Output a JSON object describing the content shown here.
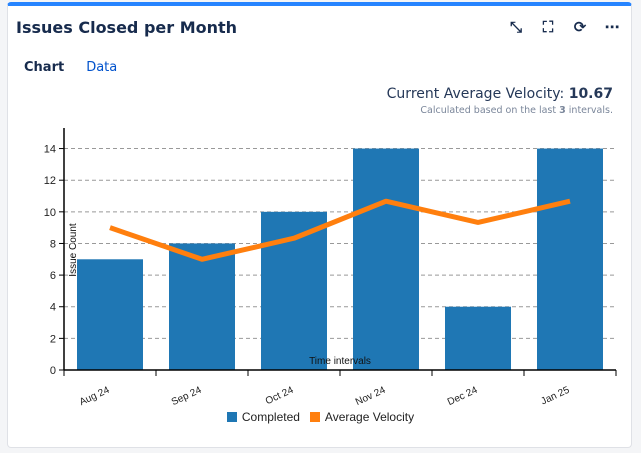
{
  "header": {
    "title": "Issues Closed per Month",
    "icons": [
      "collapse-icon",
      "fullscreen-icon",
      "refresh-icon",
      "more-icon"
    ]
  },
  "tabs": [
    {
      "label": "Chart",
      "active": true
    },
    {
      "label": "Data",
      "active": false
    }
  ],
  "velocity": {
    "label": "Current Average Velocity:",
    "value": "10.67",
    "note_prefix": "Calculated based on the last",
    "note_count": "3",
    "note_suffix": "intervals."
  },
  "chart_data": {
    "type": "bar",
    "categories": [
      "Aug 24",
      "Sep 24",
      "Oct 24",
      "Nov 24",
      "Dec 24",
      "Jan 25"
    ],
    "series": [
      {
        "name": "Completed",
        "type": "bar",
        "color": "#1f77b4",
        "values": [
          7,
          8,
          10,
          14,
          4,
          14
        ]
      },
      {
        "name": "Average Velocity",
        "type": "line",
        "color": "#ff7f0e",
        "values": [
          9,
          7,
          8.33,
          10.67,
          9.33,
          10.67
        ]
      }
    ],
    "xlabel": "Time intervals",
    "ylabel": "Issue Count",
    "ylim": [
      0,
      15.3
    ],
    "yticks": [
      0,
      2,
      4,
      6,
      8,
      10,
      12,
      14
    ],
    "grid": true,
    "legend": "bottom"
  }
}
